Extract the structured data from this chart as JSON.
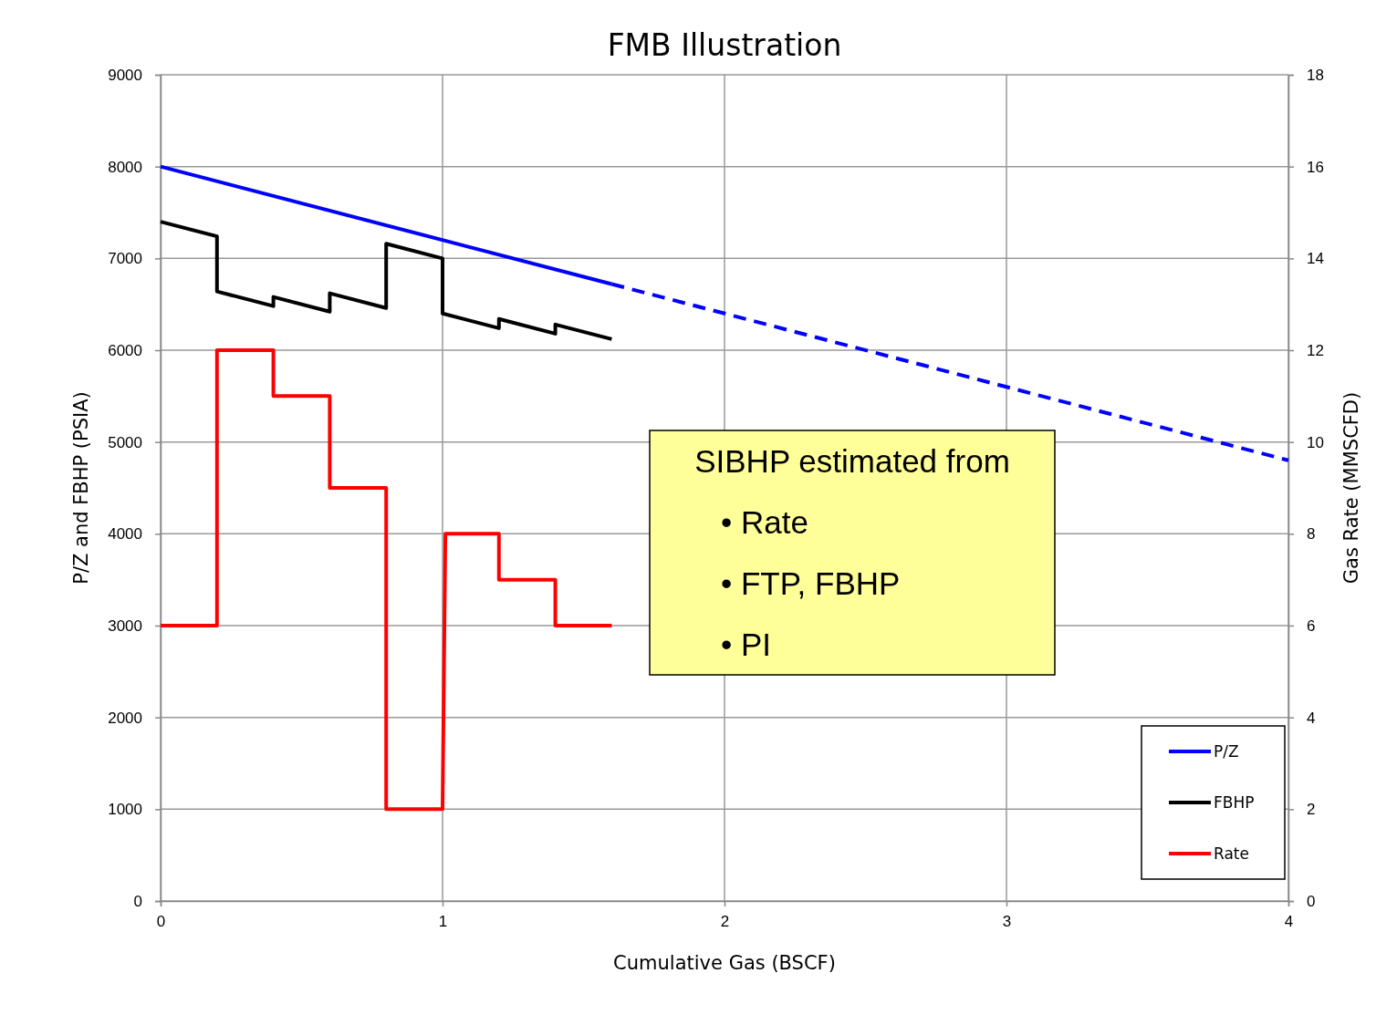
{
  "chart_data": {
    "type": "line",
    "title": "FMB Illustration",
    "xlabel": "Cumulative Gas (BSCF)",
    "ylabel": "P/Z and FBHP (PSIA)",
    "y2label": "Gas Rate (MMSCFD)",
    "xlim": [
      0,
      4
    ],
    "xticks": [
      0,
      1,
      2,
      3,
      4
    ],
    "ylim": [
      0,
      9000
    ],
    "yticks": [
      0,
      1000,
      2000,
      3000,
      4000,
      5000,
      6000,
      7000,
      8000,
      9000
    ],
    "y2lim": [
      0,
      18
    ],
    "y2ticks": [
      0,
      2,
      4,
      6,
      8,
      10,
      12,
      14,
      16,
      18
    ],
    "grid": true,
    "legend": "bottom right",
    "marker": "none",
    "series": [
      {
        "name": "P/Z",
        "color": "#0000ff",
        "x": [
          0,
          1.6
        ],
        "values": [
          8000,
          6720
        ]
      },
      {
        "color": "#0000ff",
        "line_style": "dashed",
        "x": [
          1.6,
          4
        ],
        "values": [
          6720,
          4800
        ]
      },
      {
        "name": "FBHP",
        "color": "#000000",
        "x": [
          0,
          0.2,
          0.2,
          0.4,
          0.4,
          0.6,
          0.6,
          0.8,
          0.8,
          1.0,
          1.0,
          1.2,
          1.2,
          1.4,
          1.4,
          1.6
        ],
        "values": [
          7400,
          7240,
          6640,
          6480,
          6580,
          6420,
          6620,
          6460,
          7160,
          7000,
          6400,
          6240,
          6340,
          6180,
          6280,
          6120
        ]
      },
      {
        "name": "Rate",
        "color": "#ff0000",
        "axis": "y2",
        "x": [
          0,
          0.2,
          0.2,
          0.4,
          0.4,
          0.6,
          0.6,
          0.8,
          0.8,
          1.0,
          1.01,
          1.2,
          1.2,
          1.4,
          1.4,
          1.6
        ],
        "values": [
          6,
          6,
          12,
          12,
          11,
          11,
          9,
          9,
          2,
          2,
          8,
          8,
          7,
          7,
          6,
          6
        ]
      }
    ],
    "annotations": [
      "SIBHP estimated from",
      "• Rate",
      "• FTP, FBHP",
      "• PI"
    ]
  }
}
